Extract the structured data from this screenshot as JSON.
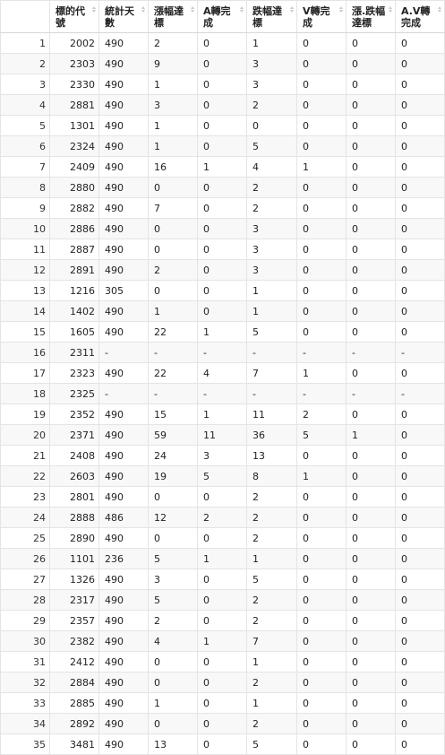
{
  "columns": [
    "標的代號",
    "統計天數",
    "漲幅達標",
    "A轉完成",
    "跌幅達標",
    "V轉完成",
    "漲.跌幅達標",
    "A.V轉完成"
  ],
  "rows": [
    [
      "1",
      "2002",
      "490",
      "2",
      "0",
      "1",
      "0",
      "0",
      "0"
    ],
    [
      "2",
      "2303",
      "490",
      "9",
      "0",
      "3",
      "0",
      "0",
      "0"
    ],
    [
      "3",
      "2330",
      "490",
      "1",
      "0",
      "3",
      "0",
      "0",
      "0"
    ],
    [
      "4",
      "2881",
      "490",
      "3",
      "0",
      "2",
      "0",
      "0",
      "0"
    ],
    [
      "5",
      "1301",
      "490",
      "1",
      "0",
      "0",
      "0",
      "0",
      "0"
    ],
    [
      "6",
      "2324",
      "490",
      "1",
      "0",
      "5",
      "0",
      "0",
      "0"
    ],
    [
      "7",
      "2409",
      "490",
      "16",
      "1",
      "4",
      "1",
      "0",
      "0"
    ],
    [
      "8",
      "2880",
      "490",
      "0",
      "0",
      "2",
      "0",
      "0",
      "0"
    ],
    [
      "9",
      "2882",
      "490",
      "7",
      "0",
      "2",
      "0",
      "0",
      "0"
    ],
    [
      "10",
      "2886",
      "490",
      "0",
      "0",
      "3",
      "0",
      "0",
      "0"
    ],
    [
      "11",
      "2887",
      "490",
      "0",
      "0",
      "3",
      "0",
      "0",
      "0"
    ],
    [
      "12",
      "2891",
      "490",
      "2",
      "0",
      "3",
      "0",
      "0",
      "0"
    ],
    [
      "13",
      "1216",
      "305",
      "0",
      "0",
      "1",
      "0",
      "0",
      "0"
    ],
    [
      "14",
      "1402",
      "490",
      "1",
      "0",
      "1",
      "0",
      "0",
      "0"
    ],
    [
      "15",
      "1605",
      "490",
      "22",
      "1",
      "5",
      "0",
      "0",
      "0"
    ],
    [
      "16",
      "2311",
      "-",
      "-",
      "-",
      "-",
      "-",
      "-",
      "-"
    ],
    [
      "17",
      "2323",
      "490",
      "22",
      "4",
      "7",
      "1",
      "0",
      "0"
    ],
    [
      "18",
      "2325",
      "-",
      "-",
      "-",
      "-",
      "-",
      "-",
      "-"
    ],
    [
      "19",
      "2352",
      "490",
      "15",
      "1",
      "11",
      "2",
      "0",
      "0"
    ],
    [
      "20",
      "2371",
      "490",
      "59",
      "11",
      "36",
      "5",
      "1",
      "0"
    ],
    [
      "21",
      "2408",
      "490",
      "24",
      "3",
      "13",
      "0",
      "0",
      "0"
    ],
    [
      "22",
      "2603",
      "490",
      "19",
      "5",
      "8",
      "1",
      "0",
      "0"
    ],
    [
      "23",
      "2801",
      "490",
      "0",
      "0",
      "2",
      "0",
      "0",
      "0"
    ],
    [
      "24",
      "2888",
      "486",
      "12",
      "2",
      "2",
      "0",
      "0",
      "0"
    ],
    [
      "25",
      "2890",
      "490",
      "0",
      "0",
      "2",
      "0",
      "0",
      "0"
    ],
    [
      "26",
      "1101",
      "236",
      "5",
      "1",
      "1",
      "0",
      "0",
      "0"
    ],
    [
      "27",
      "1326",
      "490",
      "3",
      "0",
      "5",
      "0",
      "0",
      "0"
    ],
    [
      "28",
      "2317",
      "490",
      "5",
      "0",
      "2",
      "0",
      "0",
      "0"
    ],
    [
      "29",
      "2357",
      "490",
      "2",
      "0",
      "2",
      "0",
      "0",
      "0"
    ],
    [
      "30",
      "2382",
      "490",
      "4",
      "1",
      "7",
      "0",
      "0",
      "0"
    ],
    [
      "31",
      "2412",
      "490",
      "0",
      "0",
      "1",
      "0",
      "0",
      "0"
    ],
    [
      "32",
      "2884",
      "490",
      "0",
      "0",
      "2",
      "0",
      "0",
      "0"
    ],
    [
      "33",
      "2885",
      "490",
      "1",
      "0",
      "1",
      "0",
      "0",
      "0"
    ],
    [
      "34",
      "2892",
      "490",
      "0",
      "0",
      "2",
      "0",
      "0",
      "0"
    ],
    [
      "35",
      "3481",
      "490",
      "13",
      "0",
      "5",
      "0",
      "0",
      "0"
    ]
  ]
}
